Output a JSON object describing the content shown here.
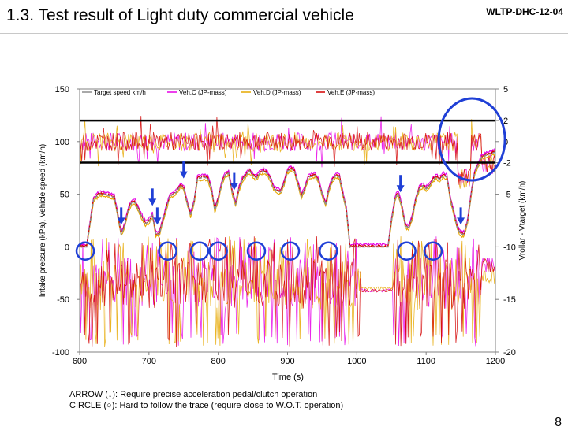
{
  "slide": {
    "title": "1.3. Test result of Light duty commercial vehicle",
    "doc_id": "WLTP-DHC-12-04",
    "page_number": "8"
  },
  "notes": {
    "arrow": "ARROW (↓): Require precise acceleration pedal/clutch operation",
    "circle": "CIRCLE (○): Hard to follow the trace (require close to W.O.T. operation)"
  },
  "colors": {
    "target": "#8c8c8c",
    "veh_c": "#e600e6",
    "veh_d": "#e6a800",
    "veh_e": "#d40000",
    "arrow": "#1f3fd6",
    "circle": "#1f3fd6",
    "band_line": "#000000"
  },
  "chart_data": {
    "type": "line",
    "xlabel": "Time (s)",
    "ylabel_left": "Intake pressure (kPa), Vehicle speed (km/h)",
    "ylabel_right": "Vrollar - Vtarget (km/h)",
    "xlim": [
      600,
      1200
    ],
    "ylim_left": [
      -100,
      150
    ],
    "ylim_right": [
      -20,
      5
    ],
    "xticks": [
      "600",
      "700",
      "800",
      "900",
      "1000",
      "1100",
      "1200"
    ],
    "yticks_left": [
      "150",
      "100",
      "50",
      "0",
      "-50",
      "-100"
    ],
    "yticks_right": [
      "5",
      "2",
      "0",
      "-2",
      "-5",
      "-10",
      "-15",
      "-20"
    ],
    "legend": [
      "Target speed km/h",
      "Veh.C (JP-mass)",
      "Veh.D (JP-mass)",
      "Veh.E (JP-mass)"
    ],
    "legend_position": "top",
    "grid": false,
    "speed_profile": {
      "x": [
        600,
        610,
        620,
        628,
        635,
        645,
        650,
        655,
        660,
        665,
        670,
        675,
        680,
        685,
        690,
        695,
        700,
        705,
        710,
        715,
        720,
        730,
        740,
        745,
        750,
        755,
        760,
        765,
        770,
        780,
        785,
        790,
        795,
        800,
        805,
        810,
        815,
        820,
        825,
        830,
        835,
        840,
        845,
        850,
        855,
        860,
        865,
        870,
        875,
        880,
        890,
        895,
        900,
        905,
        910,
        915,
        920,
        925,
        930,
        940,
        945,
        950,
        955,
        960,
        965,
        970,
        975,
        980,
        985,
        990,
        1000,
        1010,
        1020,
        1030,
        1040,
        1045,
        1050,
        1055,
        1058,
        1060,
        1065,
        1070,
        1075,
        1080,
        1085,
        1090,
        1095,
        1100,
        1105,
        1110,
        1115,
        1120,
        1125,
        1130,
        1135,
        1140,
        1145,
        1150,
        1155,
        1160,
        1165,
        1170,
        1180,
        1190,
        1200
      ],
      "y": [
        0,
        0,
        45,
        50,
        50,
        48,
        47,
        30,
        12,
        20,
        35,
        42,
        42,
        35,
        28,
        22,
        24,
        30,
        12,
        12,
        25,
        48,
        52,
        58,
        56,
        42,
        30,
        42,
        65,
        66,
        65,
        55,
        35,
        45,
        60,
        68,
        70,
        52,
        40,
        55,
        64,
        68,
        72,
        68,
        65,
        70,
        72,
        70,
        65,
        55,
        52,
        60,
        72,
        74,
        72,
        60,
        48,
        55,
        66,
        68,
        62,
        50,
        40,
        55,
        64,
        68,
        66,
        50,
        35,
        0,
        0,
        0,
        0,
        0,
        0,
        0,
        25,
        45,
        50,
        50,
        38,
        20,
        18,
        28,
        45,
        55,
        58,
        55,
        58,
        64,
        66,
        64,
        68,
        66,
        45,
        32,
        18,
        12,
        12,
        25,
        50,
        70,
        85,
        88,
        90
      ]
    },
    "annotations": {
      "arrows_x": [
        660,
        705,
        712,
        750,
        823,
        1063,
        1150
      ],
      "circles_x": [
        608,
        727,
        773,
        800,
        855,
        904,
        959,
        1072,
        1110
      ],
      "large_circle_x": 1166,
      "band_lines_right": [
        2,
        -2
      ]
    }
  }
}
